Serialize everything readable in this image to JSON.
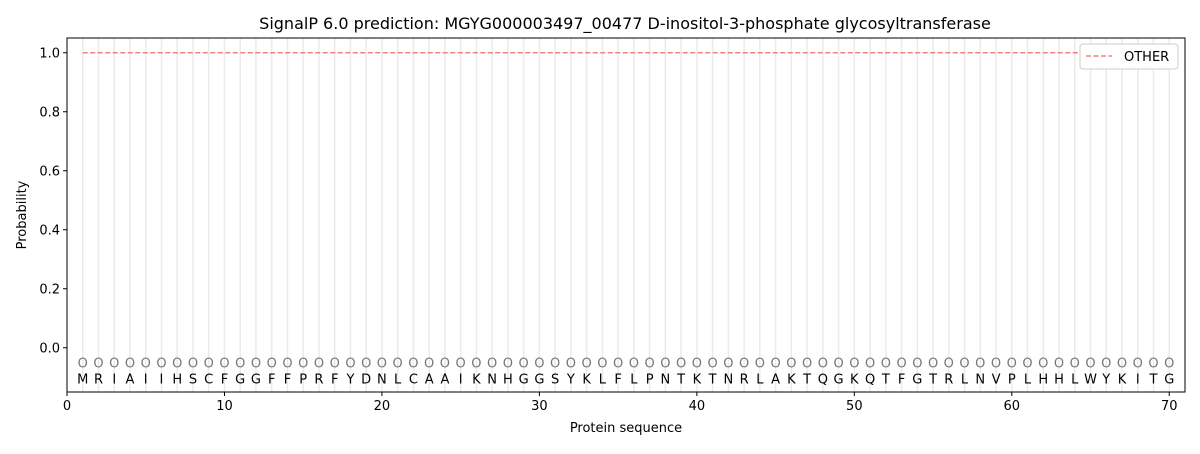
{
  "chart_data": {
    "type": "line",
    "title": "SignalP 6.0 prediction: MGYG000003497_00477 D-inositol-3-phosphate glycosyltransferase",
    "xlabel": "Protein sequence",
    "ylabel": "Probability",
    "xlim": [
      0,
      71
    ],
    "ylim": [
      -0.15,
      1.05
    ],
    "xticks": [
      0,
      10,
      20,
      30,
      40,
      50,
      60,
      70
    ],
    "yticks": [
      "0.0",
      "0.2",
      "0.4",
      "0.6",
      "0.8",
      "1.0"
    ],
    "legend_position": "top-right",
    "sequence": [
      "M",
      "R",
      "I",
      "A",
      "I",
      "I",
      "H",
      "S",
      "C",
      "F",
      "G",
      "G",
      "F",
      "F",
      "P",
      "R",
      "F",
      "Y",
      "D",
      "N",
      "L",
      "C",
      "A",
      "A",
      "I",
      "K",
      "N",
      "H",
      "G",
      "G",
      "S",
      "Y",
      "K",
      "L",
      "F",
      "L",
      "P",
      "N",
      "T",
      "K",
      "T",
      "N",
      "R",
      "L",
      "A",
      "K",
      "T",
      "Q",
      "G",
      "K",
      "Q",
      "T",
      "F",
      "G",
      "T",
      "R",
      "L",
      "N",
      "V",
      "P",
      "L",
      "H",
      "H",
      "L",
      "W",
      "Y",
      "K",
      "I",
      "T",
      "G"
    ],
    "region_label": "O",
    "series": [
      {
        "name": "OTHER",
        "color": "#f08080",
        "style": "dashed",
        "x_range": [
          1,
          70
        ],
        "value": 1.0
      }
    ]
  }
}
